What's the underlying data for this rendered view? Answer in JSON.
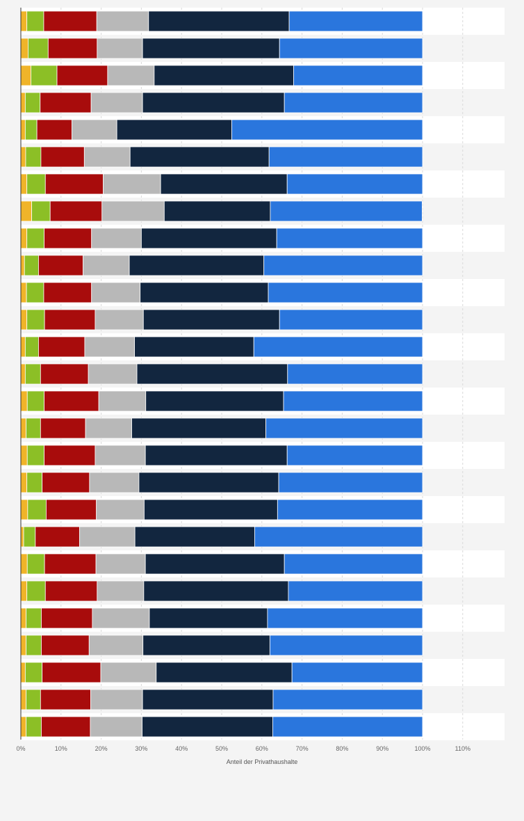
{
  "chart_data": {
    "type": "bar",
    "orientation": "horizontal",
    "stacked": true,
    "xlabel": "Anteil der Privathaushalte",
    "xlim": [
      0,
      120
    ],
    "xticks": [
      0,
      10,
      20,
      30,
      40,
      50,
      60,
      70,
      80,
      90,
      100,
      110
    ],
    "tick_labels": [
      "0%",
      "10%",
      "20%",
      "30%",
      "40%",
      "50%",
      "60%",
      "70%",
      "80%",
      "90%",
      "100%",
      "110%"
    ],
    "grid": "vertical",
    "legend": "none",
    "series": [
      {
        "color": "#f0b429",
        "values": [
          1.5,
          1.8,
          2.5,
          1.1,
          1.1,
          1.2,
          1.5,
          2.7,
          1.5,
          0.9,
          1.4,
          1.5,
          1.1,
          1.1,
          1.6,
          1.3,
          1.6,
          1.5,
          1.7,
          0.7,
          1.6,
          1.5,
          1.3,
          1.3,
          1.1,
          1.3,
          1.3
        ]
      },
      {
        "color": "#8cbf26",
        "values": [
          4.2,
          5.0,
          6.5,
          3.7,
          2.9,
          3.8,
          4.6,
          4.6,
          4.3,
          3.5,
          4.3,
          4.4,
          3.3,
          3.8,
          4.2,
          3.6,
          4.2,
          3.8,
          4.6,
          2.9,
          4.3,
          4.6,
          3.8,
          3.8,
          4.2,
          3.6,
          3.8
        ]
      },
      {
        "color": "#a80c0c",
        "values": [
          13.2,
          12.2,
          12.6,
          12.7,
          8.7,
          10.8,
          14.4,
          12.9,
          11.8,
          11.1,
          11.9,
          12.6,
          11.5,
          11.9,
          13.6,
          11.2,
          12.7,
          11.8,
          12.5,
          11.0,
          12.8,
          12.9,
          12.7,
          11.9,
          14.6,
          12.5,
          12.2
        ]
      },
      {
        "color": "#b8b8b8",
        "values": [
          12.9,
          11.3,
          11.6,
          12.8,
          11.2,
          11.4,
          14.3,
          15.5,
          12.4,
          11.5,
          12.1,
          12.0,
          12.4,
          12.1,
          11.7,
          11.5,
          12.5,
          12.3,
          11.9,
          13.8,
          12.3,
          11.6,
          14.2,
          13.4,
          13.8,
          12.9,
          12.9
        ]
      },
      {
        "color": "#12263f",
        "values": [
          35.0,
          34.1,
          34.7,
          35.3,
          28.6,
          34.6,
          31.5,
          26.4,
          33.7,
          33.5,
          31.9,
          33.9,
          29.7,
          37.5,
          34.3,
          33.4,
          35.3,
          34.8,
          33.2,
          29.8,
          34.6,
          36.0,
          29.4,
          31.6,
          33.8,
          32.5,
          32.5
        ]
      },
      {
        "color": "#2a76dd",
        "values": [
          33.2,
          35.6,
          32.1,
          34.4,
          47.5,
          38.2,
          33.7,
          37.8,
          36.3,
          39.5,
          38.4,
          35.6,
          42.0,
          33.6,
          34.6,
          39.0,
          33.7,
          35.8,
          36.1,
          41.8,
          34.4,
          33.4,
          38.6,
          38.0,
          32.5,
          37.2,
          37.3
        ]
      }
    ]
  }
}
